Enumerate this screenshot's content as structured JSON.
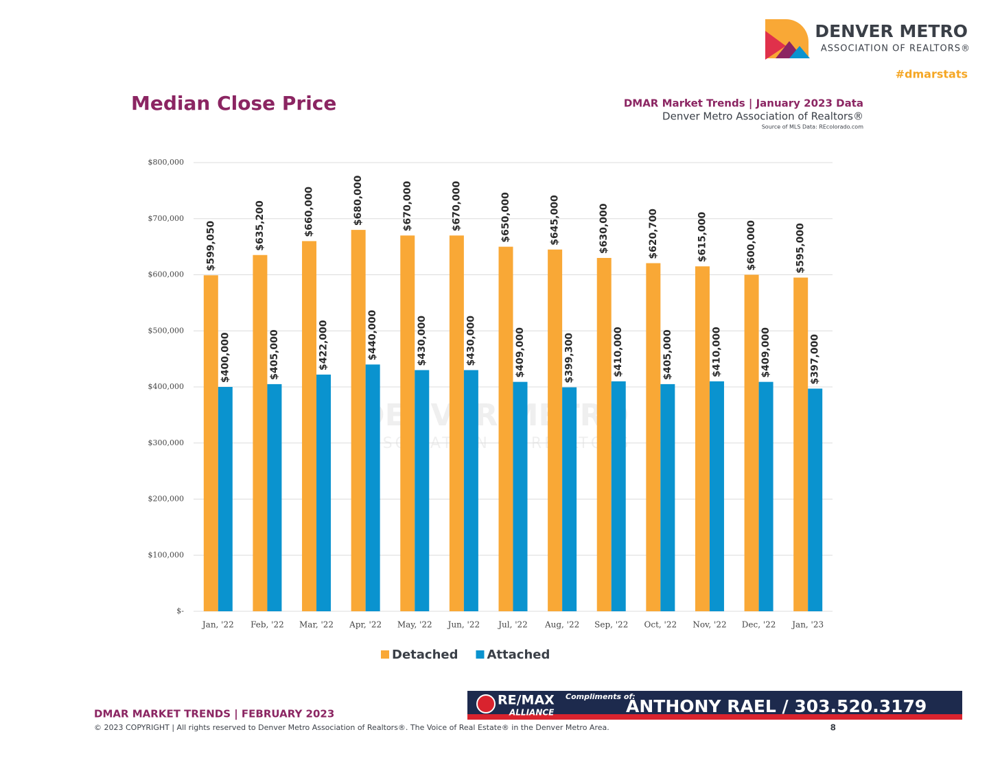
{
  "page": {
    "logo_name": "DENVER METRO",
    "logo_sub": "ASSOCIATION OF REALTORS®",
    "hashtag": "#dmarstats",
    "report_title": "DMAR Market Trends | January 2023 Data",
    "report_org": "Denver Metro Association of Realtors®",
    "report_source": "Source of MLS Data: REcolorado.com",
    "watermark_name": "DENVER METRO",
    "watermark_sub": "ASSOCIATION OF REALTORS",
    "footer_title": "DMAR MARKET TRENDS | FEBRUARY 2023",
    "footer_copyright": "© 2023 COPYRIGHT | All rights reserved to Denver Metro Association of Realtors®. The Voice of Real Estate® in the Denver Metro Area.",
    "page_number": "8",
    "banner_brand": "RE/MAX",
    "banner_office": "ALLIANCE",
    "banner_compliments": "Compliments of:",
    "banner_agent": "ANTHONY RAEL / 303.520.3179"
  },
  "chart_data": {
    "type": "bar",
    "title": "Median Close Price",
    "categories": [
      "Jan, '22",
      "Feb, '22",
      "Mar, '22",
      "Apr, '22",
      "May, '22",
      "Jun, '22",
      "Jul, '22",
      "Aug, '22",
      "Sep, '22",
      "Oct, '22",
      "Nov, '22",
      "Dec, '22",
      "Jan, '23"
    ],
    "series": [
      {
        "name": "Detached",
        "color": "#f9a836",
        "values": [
          599050,
          635200,
          660000,
          680000,
          670000,
          670000,
          650000,
          645000,
          630000,
          620700,
          615000,
          600000,
          595000
        ],
        "value_labels": [
          "$599,050",
          "$635,200",
          "$660,000",
          "$680,000",
          "$670,000",
          "$670,000",
          "$650,000",
          "$645,000",
          "$630,000",
          "$620,700",
          "$615,000",
          "$600,000",
          "$595,000"
        ]
      },
      {
        "name": "Attached",
        "color": "#0a93cf",
        "values": [
          400000,
          405000,
          422000,
          440000,
          430000,
          430000,
          409000,
          399300,
          410000,
          405000,
          410000,
          409000,
          397000
        ],
        "value_labels": [
          "$400,000",
          "$405,000",
          "$422,000",
          "$440,000",
          "$430,000",
          "$430,000",
          "$409,000",
          "$399,300",
          "$410,000",
          "$405,000",
          "$410,000",
          "$409,000",
          "$397,000"
        ]
      }
    ],
    "ylim": [
      0,
      800000
    ],
    "yticks": [
      {
        "value": 0,
        "label": "$-"
      },
      {
        "value": 100000,
        "label": "$100,000"
      },
      {
        "value": 200000,
        "label": "$200,000"
      },
      {
        "value": 300000,
        "label": "$300,000"
      },
      {
        "value": 400000,
        "label": "$400,000"
      },
      {
        "value": 500000,
        "label": "$500,000"
      },
      {
        "value": 600000,
        "label": "$600,000"
      },
      {
        "value": 700000,
        "label": "$700,000"
      },
      {
        "value": 800000,
        "label": "$800,000"
      }
    ],
    "grid": true,
    "legend": "bottom"
  }
}
